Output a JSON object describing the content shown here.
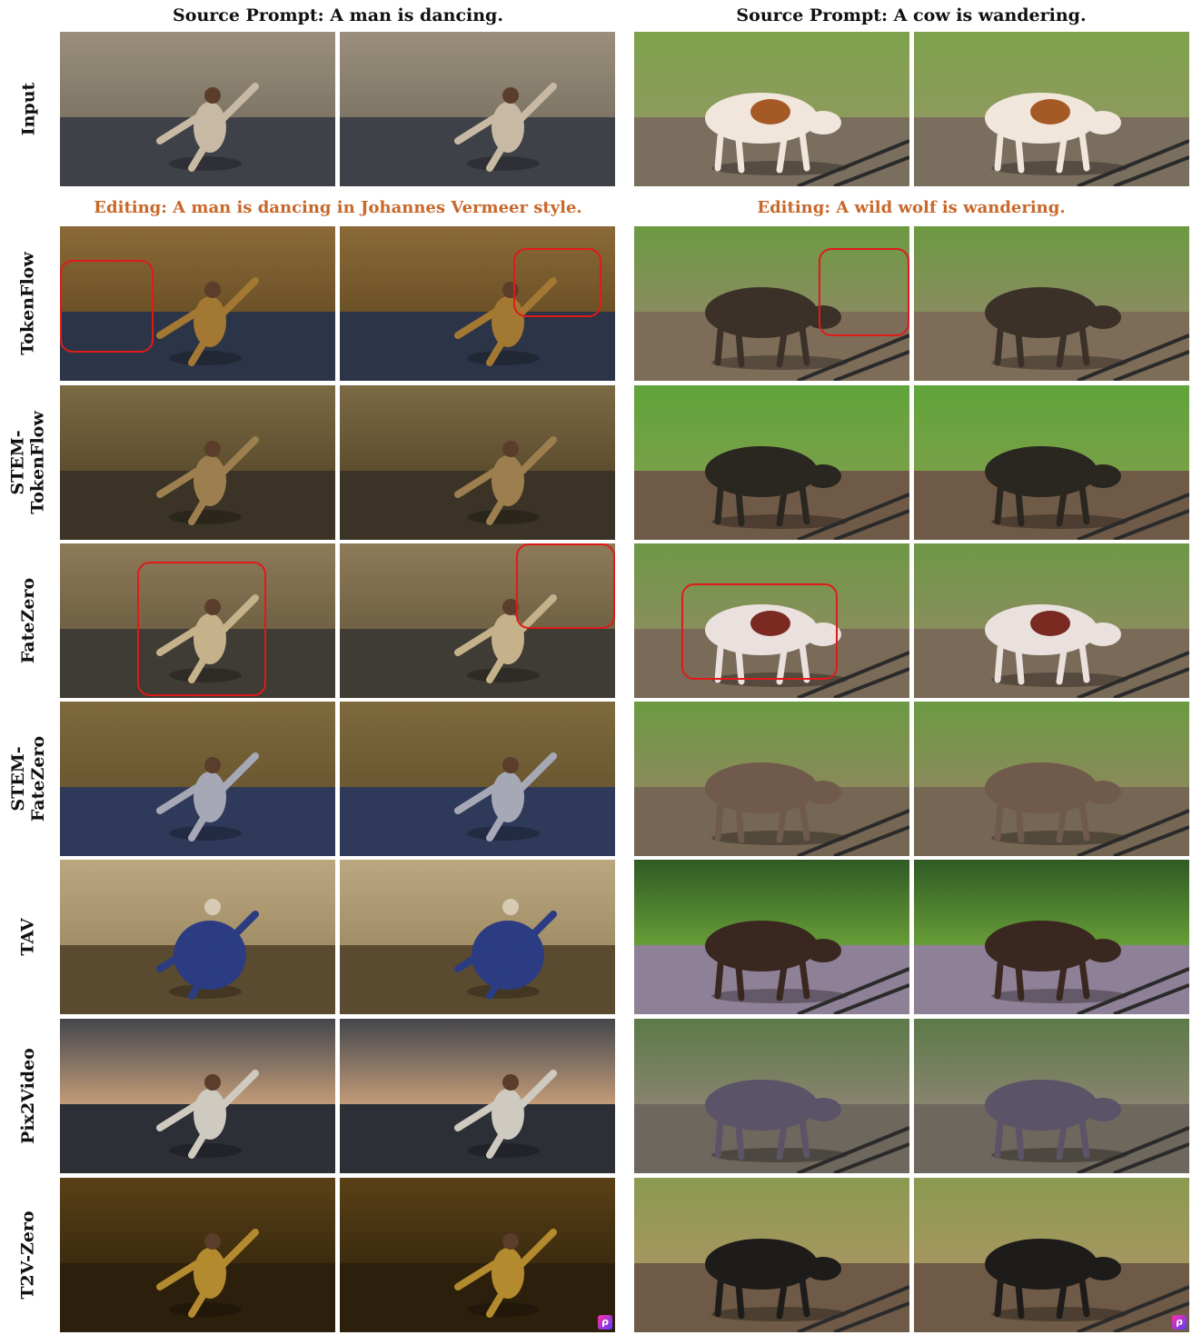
{
  "left_header": "Source Prompt: A man is dancing.",
  "right_header": "Source Prompt: A cow is wandering.",
  "left_edit": "Editing: A man is dancing in Johannes Vermeer style.",
  "right_edit": "Editing: A wild wolf is wandering.",
  "rows": [
    {
      "label": "Input"
    },
    {
      "label": "TokenFlow"
    },
    {
      "label": "STEM-\nTokenFlow"
    },
    {
      "label": "FateZero"
    },
    {
      "label": "STEM-\nFateZero"
    },
    {
      "label": "TAV"
    },
    {
      "label": "Pix2Video"
    },
    {
      "label": "T2V-Zero"
    }
  ],
  "logo_glyph": "ρ",
  "colors": {
    "edit_text": "#c8682a",
    "highlight_box": "#e01a1a"
  }
}
